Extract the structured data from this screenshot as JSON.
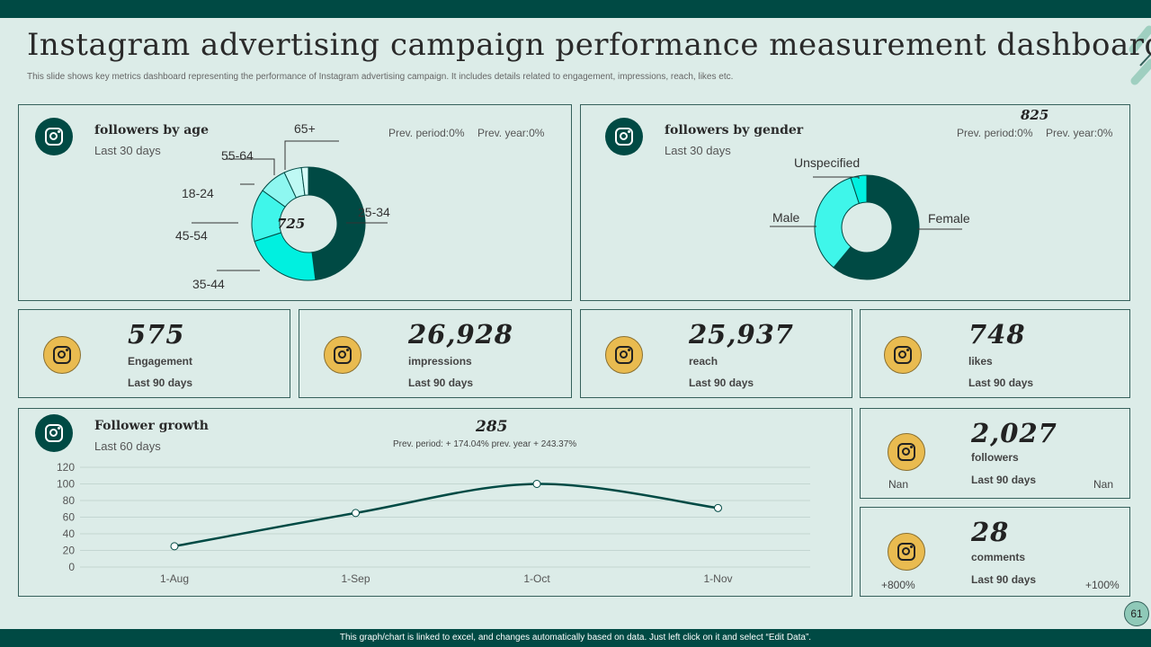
{
  "title": "Instagram advertising campaign performance measurement dashboard",
  "subtitle": "This slide shows key metrics dashboard representing the performance of Instagram advertising campaign. It includes details related to engagement, impressions, reach, likes etc.",
  "footer": "This graph/chart is linked to excel, and changes automatically based on data. Just left click on it and select “Edit Data”.",
  "page_number": "61",
  "colors": {
    "dark": "#004a44",
    "aqua": "#00f0e0",
    "aqua_mid": "#3ff6ea",
    "aqua_light": "#8ef7f0",
    "aqua_pale": "#bff9f4",
    "gold": "#e9bb50"
  },
  "age": {
    "title": "followers by age",
    "period": "Last 30 days",
    "prev_period": "Prev. period:0%",
    "prev_year": "Prev. year:0%",
    "total": "725",
    "labels": {
      "a65": "65+",
      "a5564": "55-64",
      "a1824": "18-24",
      "a4554": "45-54",
      "a3544": "35-44",
      "a2534": "25-34"
    }
  },
  "gender": {
    "title": "followers by gender",
    "period": "Last 30 days",
    "total": "825",
    "prev_period": "Prev. period:0%",
    "prev_year": "Prev. year:0%",
    "labels": {
      "unspecified": "Unspecified",
      "male": "Male",
      "female": "Female"
    }
  },
  "metrics": {
    "engagement": {
      "value": "575",
      "label": "Engagement",
      "period": "Last 90 days"
    },
    "impressions": {
      "value": "26,928",
      "label": "impressions",
      "period": "Last 90 days"
    },
    "reach": {
      "value": "25,937",
      "label": "reach",
      "period": "Last 90 days"
    },
    "likes": {
      "value": "748",
      "label": "likes",
      "period": "Last 90 days"
    },
    "followers": {
      "value": "2,027",
      "label": "followers",
      "period": "Last 90 days",
      "left": "Nan",
      "right": "Nan"
    },
    "comments": {
      "value": "28",
      "label": "comments",
      "period": "Last 90 days",
      "left": "+800%",
      "right": "+100%"
    }
  },
  "growth": {
    "title": "Follower growth",
    "period": "Last 60 days",
    "total": "285",
    "prev": "Prev. period: + 174.04% prev. year + 243.37%"
  },
  "chart_data": [
    {
      "type": "pie",
      "title": "followers by age",
      "categories": [
        "25-34",
        "35-44",
        "45-54",
        "18-24",
        "55-64",
        "65+"
      ],
      "values": [
        48,
        22,
        15,
        8,
        5,
        2
      ],
      "center_label": "725"
    },
    {
      "type": "pie",
      "title": "followers by gender",
      "categories": [
        "Female",
        "Male",
        "Unspecified"
      ],
      "values": [
        61,
        34,
        5
      ]
    },
    {
      "type": "line",
      "title": "Follower growth",
      "categories": [
        "1-Aug",
        "1-Sep",
        "1-Oct",
        "1-Nov"
      ],
      "y_ticks": [
        "0",
        "20",
        "40",
        "60",
        "80",
        "100",
        "120"
      ],
      "series": [
        {
          "name": "Followers",
          "values": [
            25,
            65,
            100,
            71
          ]
        }
      ],
      "ylim": [
        0,
        120
      ]
    }
  ]
}
